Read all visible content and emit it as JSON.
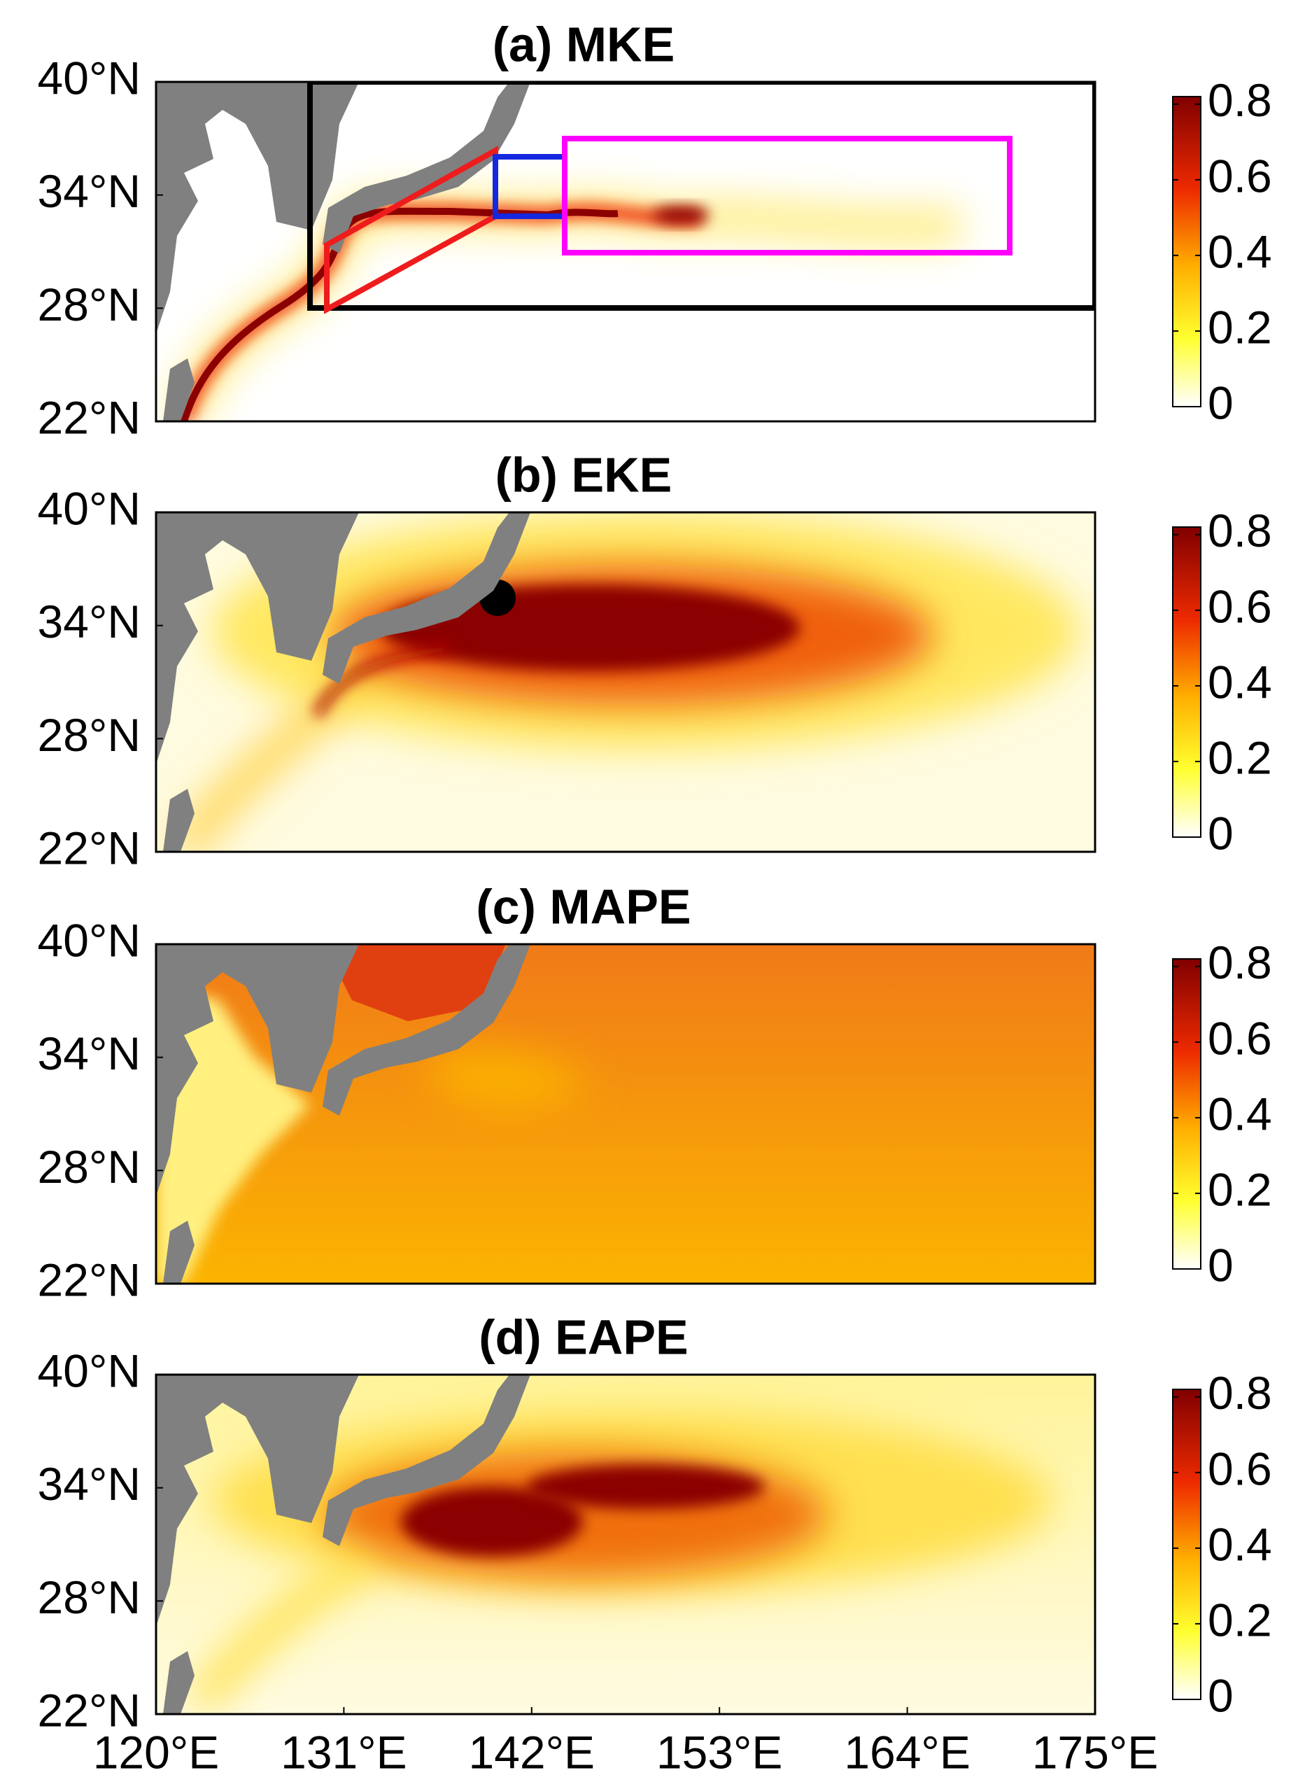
{
  "panels": [
    {
      "title": "(a) MKE"
    },
    {
      "title": "(b) EKE"
    },
    {
      "title": "(c) MAPE"
    },
    {
      "title": "(d) EAPE"
    }
  ],
  "lat_axis": {
    "lim": [
      22,
      40
    ],
    "ticks": [
      {
        "value": 22,
        "label": "22°N"
      },
      {
        "value": 28,
        "label": "28°N"
      },
      {
        "value": 34,
        "label": "34°N"
      },
      {
        "value": 40,
        "label": "40°N"
      }
    ]
  },
  "lon_axis": {
    "lim": [
      120,
      175
    ],
    "ticks": [
      {
        "value": 120,
        "label": "120°E"
      },
      {
        "value": 131,
        "label": "131°E"
      },
      {
        "value": 142,
        "label": "142°E"
      },
      {
        "value": 153,
        "label": "153°E"
      },
      {
        "value": 164,
        "label": "164°E"
      },
      {
        "value": 175,
        "label": "175°E"
      }
    ]
  },
  "colorbar": {
    "lim": [
      0,
      0.82
    ],
    "ticks": [
      0,
      0.2,
      0.4,
      0.6,
      0.8
    ]
  }
}
